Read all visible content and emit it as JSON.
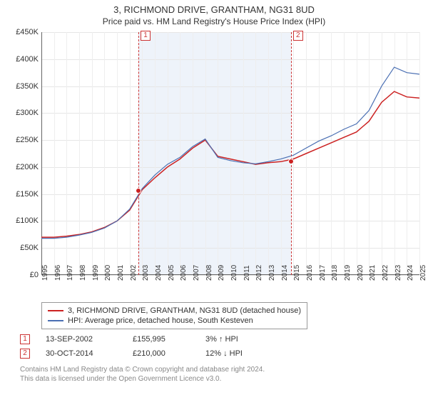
{
  "title": "3, RICHMOND DRIVE, GRANTHAM, NG31 8UD",
  "subtitle": "Price paid vs. HM Land Registry's House Price Index (HPI)",
  "chart": {
    "type": "line",
    "background_color": "#ffffff",
    "shaded_range_color": "#eef3fa",
    "grid_color": "#e6e6e6",
    "axis_color": "#666666",
    "marker_line_color": "#cc3333",
    "ylim": [
      0,
      450000
    ],
    "ytick_step": 50000,
    "y_ticks": [
      "£0",
      "£50K",
      "£100K",
      "£150K",
      "£200K",
      "£250K",
      "£300K",
      "£350K",
      "£400K",
      "£450K"
    ],
    "x_years": [
      1995,
      1996,
      1997,
      1998,
      1999,
      2000,
      2001,
      2002,
      2003,
      2004,
      2005,
      2006,
      2007,
      2008,
      2009,
      2010,
      2011,
      2012,
      2013,
      2014,
      2015,
      2016,
      2017,
      2018,
      2019,
      2020,
      2021,
      2022,
      2023,
      2024,
      2025
    ],
    "shaded_start_year": 2002.7,
    "shaded_end_year": 2014.8,
    "series": [
      {
        "name": "3, RICHMOND DRIVE, GRANTHAM, NG31 8UD (detached house)",
        "color": "#cc2222",
        "width": 1.5,
        "points_y": [
          70,
          70,
          72,
          75,
          80,
          88,
          100,
          120,
          158,
          180,
          200,
          215,
          235,
          250,
          220,
          215,
          210,
          205,
          208,
          210,
          215,
          225,
          235,
          245,
          255,
          265,
          285,
          320,
          340,
          330,
          328
        ]
      },
      {
        "name": "HPI: Average price, detached house, South Kesteven",
        "color": "#4a6fb3",
        "width": 1.2,
        "points_y": [
          68,
          68,
          70,
          74,
          79,
          87,
          100,
          122,
          160,
          185,
          205,
          218,
          238,
          252,
          218,
          212,
          208,
          206,
          210,
          215,
          222,
          235,
          248,
          258,
          270,
          280,
          305,
          350,
          385,
          375,
          372
        ]
      }
    ],
    "events": [
      {
        "num": "1",
        "year": 2002.7,
        "value": 155995,
        "date": "13-SEP-2002",
        "price": "£155,995",
        "pct": "3% ↑ HPI",
        "dot_color": "#cc2222"
      },
      {
        "num": "2",
        "year": 2014.8,
        "value": 210000,
        "date": "30-OCT-2014",
        "price": "£210,000",
        "pct": "12% ↓ HPI",
        "dot_color": "#cc2222"
      }
    ]
  },
  "footer": {
    "line1": "Contains HM Land Registry data © Crown copyright and database right 2024.",
    "line2": "This data is licensed under the Open Government Licence v3.0."
  },
  "label_fontsize": 11,
  "tick_fontsize": 10
}
